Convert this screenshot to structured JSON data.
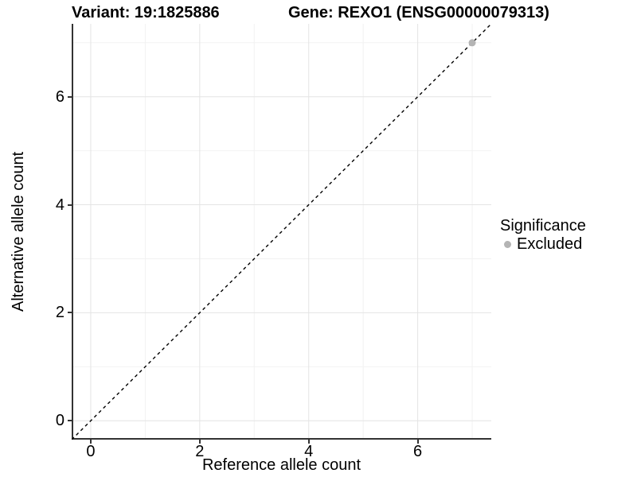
{
  "chart_data": {
    "type": "scatter",
    "title_left": "Variant: 19:1825886",
    "title_right": "Gene: REXO1 (ENSG00000079313)",
    "xlabel": "Reference allele count",
    "ylabel": "Alternative allele count",
    "xlim": [
      -0.35,
      7.35
    ],
    "ylim": [
      -0.35,
      7.35
    ],
    "xticks": [
      0,
      2,
      4,
      6
    ],
    "yticks": [
      0,
      2,
      4,
      6
    ],
    "x_minor_ticks": [
      1,
      3,
      5,
      7
    ],
    "y_minor_ticks": [
      1,
      3,
      5,
      7
    ],
    "grid": "major+minor",
    "panel_background": "#ffffff",
    "major_grid_color": "#e4e4e4",
    "minor_grid_color": "#f2f2f2",
    "axis_line_color": "#333333",
    "identity_line": {
      "equation": "y = x",
      "style": "dashed",
      "color": "#000000"
    },
    "series": [
      {
        "name": "Excluded",
        "color": "#b4b4b4",
        "points": [
          {
            "x": 7,
            "y": 7
          }
        ]
      }
    ],
    "legend": {
      "title": "Significance",
      "position": "right",
      "entries": [
        {
          "label": "Excluded",
          "color": "#b4b4b4"
        }
      ]
    }
  }
}
